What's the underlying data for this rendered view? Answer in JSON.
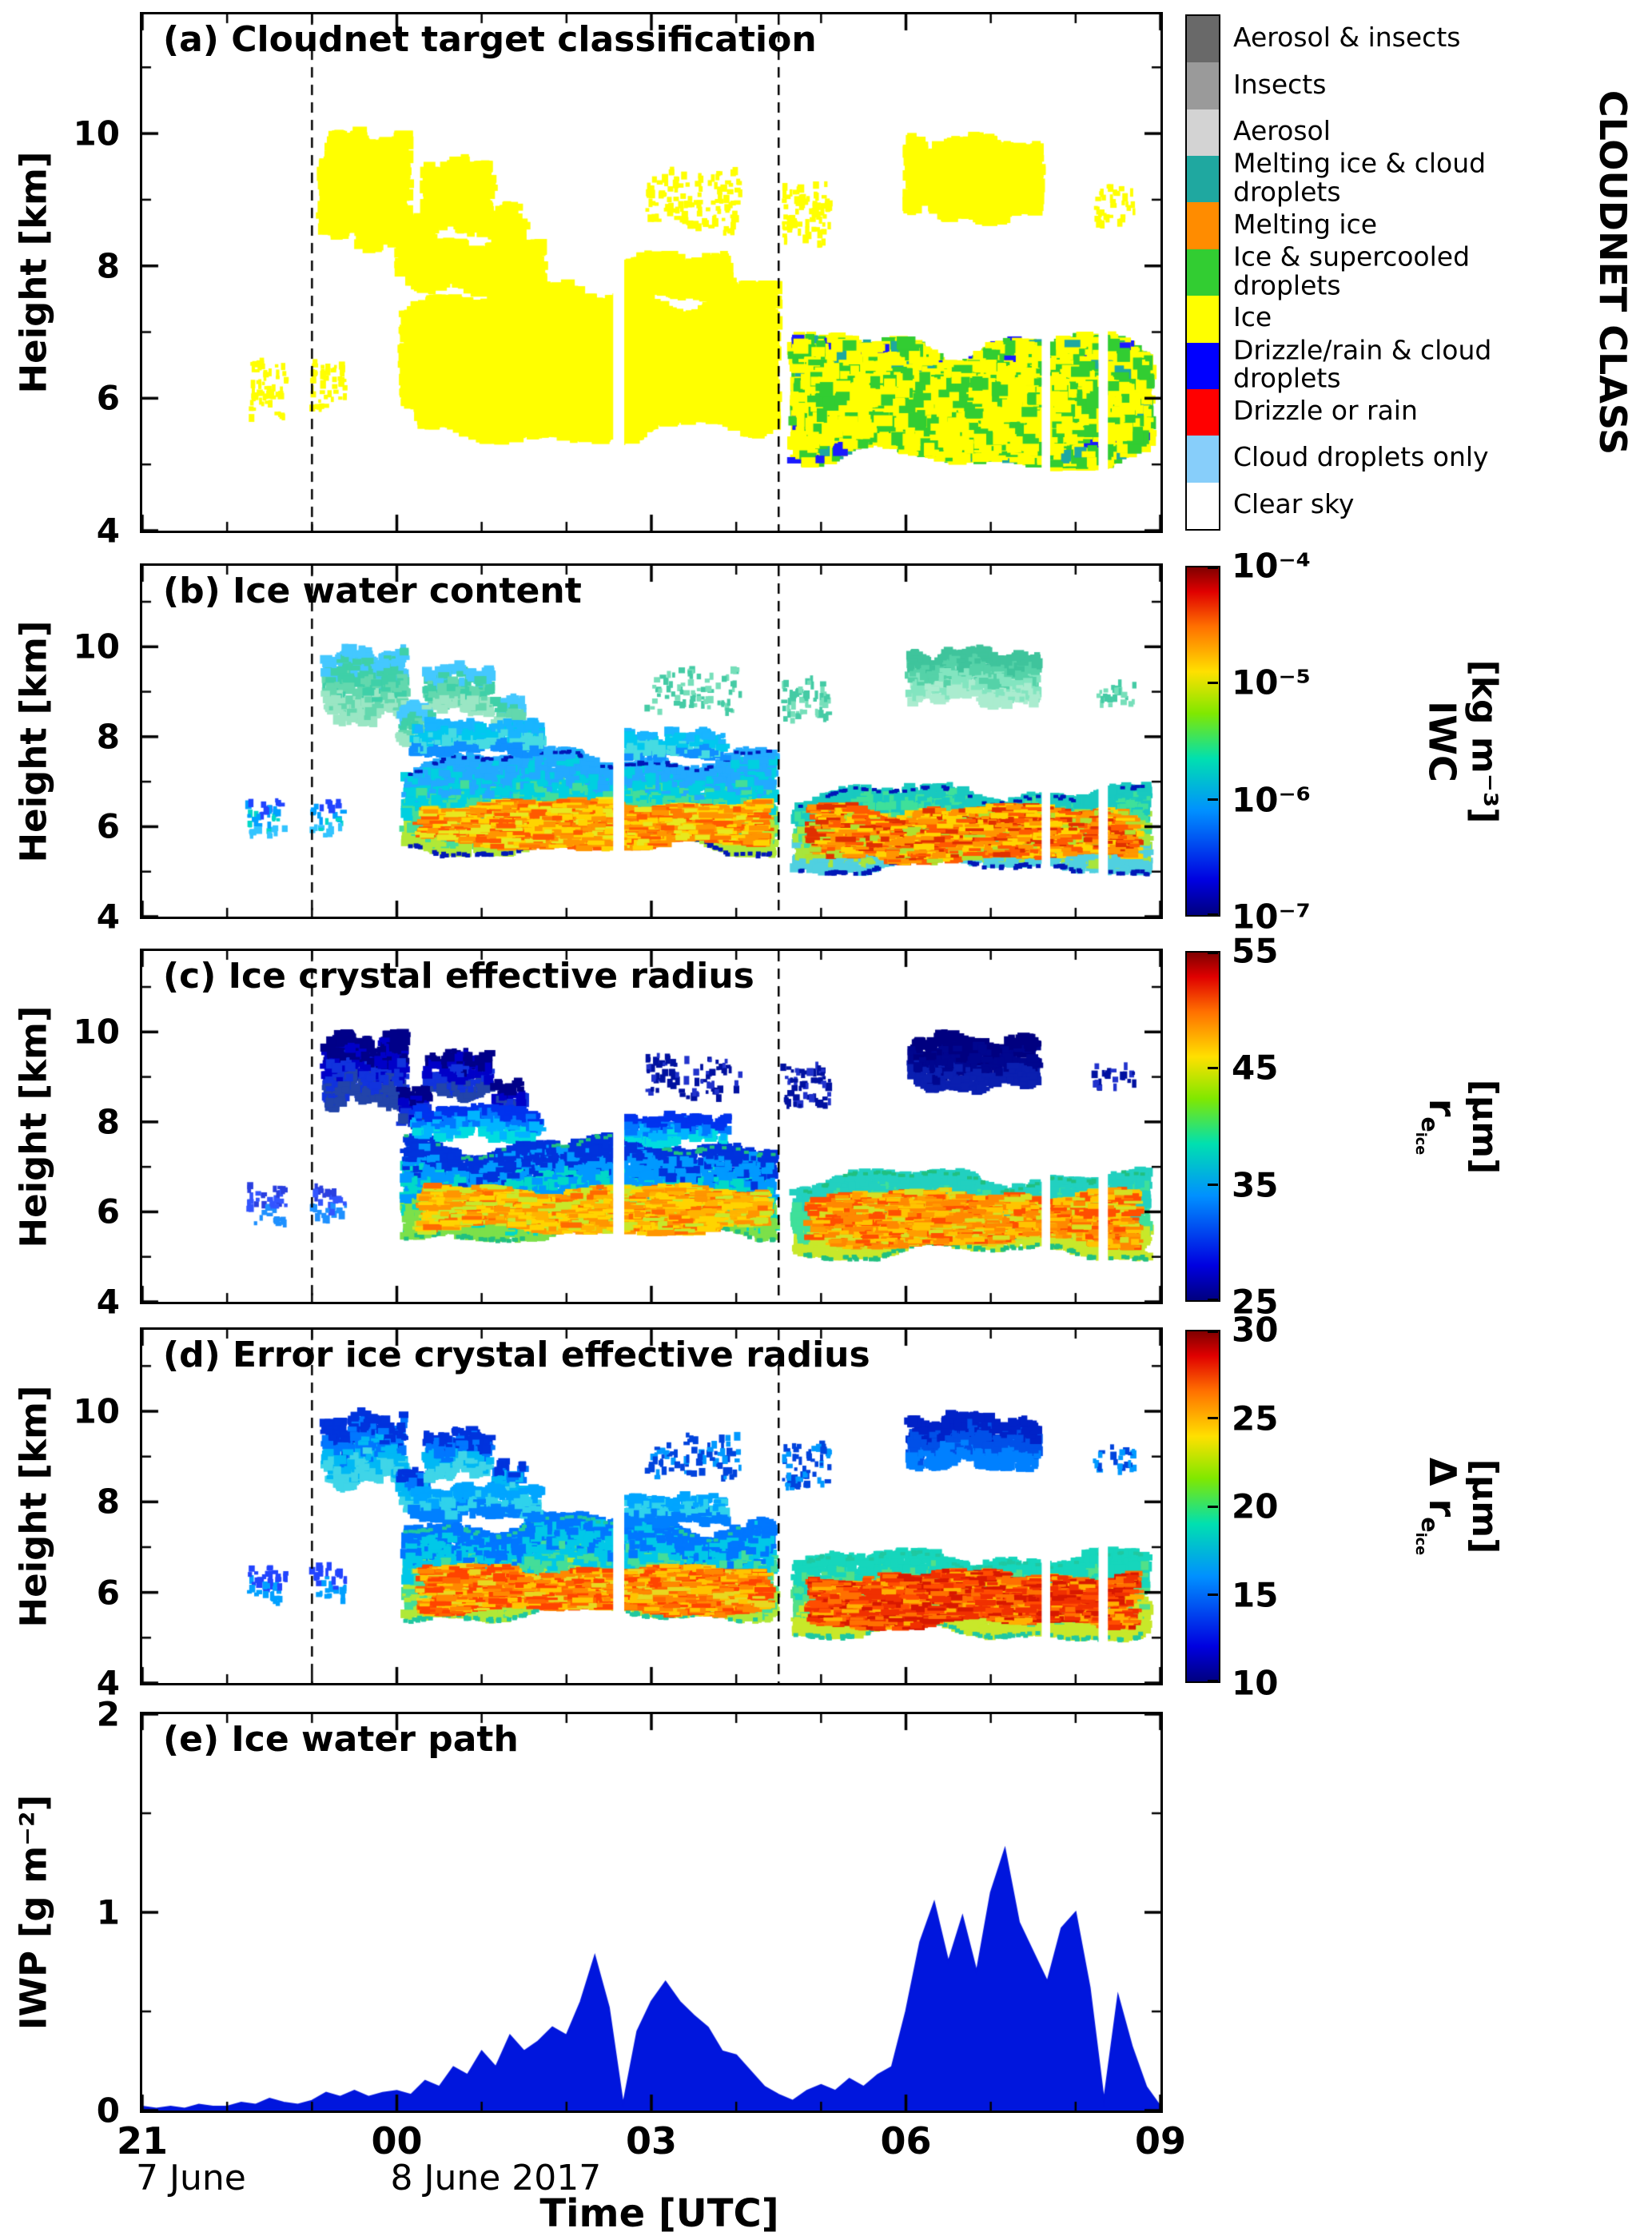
{
  "layout_text": {
    "x_axis_label": "Time [UTC]",
    "x_ticks": [
      {
        "t": 0,
        "label": "21"
      },
      {
        "t": 3,
        "label": "00"
      },
      {
        "t": 6,
        "label": "03"
      },
      {
        "t": 9,
        "label": "06"
      },
      {
        "t": 12,
        "label": "09"
      }
    ],
    "x_minor_step_hours": 1,
    "date_labels": [
      {
        "t": 0,
        "label": "7 June"
      },
      {
        "t": 3,
        "label": "8 June 2017"
      }
    ]
  },
  "annotations": {
    "dashed_vertical_lines_hours": [
      2.0,
      7.5
    ]
  },
  "gaps": [
    {
      "t": [
        5.55,
        5.68
      ],
      "h": [
        4.05,
        8.45
      ]
    },
    {
      "t": [
        10.6,
        10.7
      ],
      "h": [
        4.05,
        7.05
      ]
    },
    {
      "t": [
        11.27,
        11.38
      ],
      "h": [
        4.05,
        7.05
      ]
    }
  ],
  "cloud_patches": [
    {
      "id": "left-specks-1",
      "t": [
        1.25,
        1.7
      ],
      "h": [
        5.7,
        6.6
      ],
      "zone": "thin",
      "density": 0.5
    },
    {
      "id": "left-specks-2",
      "t": [
        2.0,
        2.4
      ],
      "h": [
        5.8,
        6.6
      ],
      "zone": "thin",
      "density": 0.55
    },
    {
      "id": "cirrus-2330",
      "t": [
        2.15,
        3.1
      ],
      "h": [
        8.3,
        10.0
      ],
      "zone": "upper",
      "density": 0.9
    },
    {
      "id": "cirrus-0005",
      "t": [
        3.05,
        3.4
      ],
      "h": [
        7.8,
        8.75
      ],
      "zone": "upper",
      "density": 0.85
    },
    {
      "id": "cirrus-0030",
      "t": [
        3.35,
        4.1
      ],
      "h": [
        8.5,
        9.6
      ],
      "zone": "upper",
      "density": 0.8
    },
    {
      "id": "cirrus-0110",
      "t": [
        4.15,
        4.5
      ],
      "h": [
        8.1,
        8.9
      ],
      "zone": "upper",
      "density": 0.55
    },
    {
      "id": "main-deck",
      "t": [
        3.1,
        7.45
      ],
      "h": [
        5.4,
        7.7
      ],
      "zone": "deck",
      "density": 1.0
    },
    {
      "id": "main-deck-top-1",
      "t": [
        3.2,
        4.7
      ],
      "h": [
        7.6,
        8.35
      ],
      "zone": "band",
      "density": 0.85
    },
    {
      "id": "main-deck-top-2",
      "t": [
        5.7,
        6.9
      ],
      "h": [
        7.5,
        8.15
      ],
      "zone": "band",
      "density": 0.75
    },
    {
      "id": "main-core",
      "t": [
        3.3,
        7.35
      ],
      "h": [
        5.5,
        6.6
      ],
      "zone": "core",
      "density": 0.95
    },
    {
      "id": "mid-specks-1",
      "t": [
        5.95,
        7.05
      ],
      "h": [
        8.5,
        9.5
      ],
      "zone": "upperthin",
      "density": 0.35
    },
    {
      "id": "mid-specks-2",
      "t": [
        7.55,
        8.1
      ],
      "h": [
        8.3,
        9.3
      ],
      "zone": "upperthin",
      "density": 0.5
    },
    {
      "id": "second-deck",
      "t": [
        7.7,
        11.85
      ],
      "h": [
        5.0,
        6.9
      ],
      "zone": "deck2",
      "density": 1.0
    },
    {
      "id": "second-core",
      "t": [
        7.9,
        11.7
      ],
      "h": [
        5.2,
        6.5
      ],
      "zone": "core2",
      "density": 0.95
    },
    {
      "id": "cirrus-0630",
      "t": [
        9.05,
        10.55
      ],
      "h": [
        8.7,
        9.95
      ],
      "zone": "upper3",
      "density": 0.9
    },
    {
      "id": "right-specks",
      "t": [
        11.2,
        11.7
      ],
      "h": [
        8.6,
        9.25
      ],
      "zone": "upperthin",
      "density": 0.35
    }
  ],
  "chart_data": [
    {
      "type": "heatmap",
      "label": "a",
      "title": "(a) Cloudnet target classification",
      "ylabel": "Height [km]",
      "ylim": [
        4,
        11.8
      ],
      "yticks": [
        4,
        6,
        8,
        10
      ],
      "yticks_minor": [
        5,
        7,
        9,
        11
      ],
      "x_range_hours": [
        0,
        12
      ],
      "colorbar": {
        "kind": "categorical",
        "title": "CLOUDNET CLASS",
        "classes": [
          {
            "label": "Aerosol & insects",
            "color": "#696969"
          },
          {
            "label": "Insects",
            "color": "#9a9a9a"
          },
          {
            "label": "Aerosol",
            "color": "#d3d3d3"
          },
          {
            "label": "Melting ice & cloud droplets",
            "color": "#1fa8a0"
          },
          {
            "label": "Melting ice",
            "color": "#ff8c00"
          },
          {
            "label": "Ice & supercooled droplets",
            "color": "#32cd32"
          },
          {
            "label": "Ice",
            "color": "#ffff00"
          },
          {
            "label": "Drizzle/rain & cloud droplets",
            "color": "#0000ff"
          },
          {
            "label": "Drizzle or rain",
            "color": "#ff0000"
          },
          {
            "label": "Cloud droplets only",
            "color": "#87cefa"
          },
          {
            "label": "Clear sky",
            "color": "#ffffff"
          }
        ]
      },
      "zones": {
        "default": {
          "mode": "mix",
          "colors": [
            [
              "#ffff00",
              1.0
            ]
          ]
        },
        "deck2": {
          "mode": "mix",
          "colors": [
            [
              "#ffff00",
              0.58
            ],
            [
              "#32cd32",
              0.32
            ],
            [
              "#1fa8a0",
              0.06
            ],
            [
              "#1a1aff",
              0.04
            ]
          ]
        },
        "core2": {
          "mode": "mix",
          "colors": [
            [
              "#ffff00",
              0.72
            ],
            [
              "#32cd32",
              0.28
            ]
          ]
        }
      }
    },
    {
      "type": "heatmap",
      "label": "b",
      "title": "(b) Ice water content",
      "ylabel": "Height [km]",
      "ylim": [
        4,
        11.8
      ],
      "yticks": [
        4,
        6,
        8,
        10
      ],
      "yticks_minor": [
        5,
        7,
        9,
        11
      ],
      "x_range_hours": [
        0,
        12
      ],
      "colorbar": {
        "kind": "continuous",
        "scale": "log",
        "range": [
          1e-07,
          0.0001
        ],
        "ticks": [
          "10⁻⁴",
          "10⁻⁵",
          "10⁻⁶",
          "10⁻⁷"
        ],
        "label": {
          "prefix": "",
          "sym": "IWC",
          "sub": "",
          "subsub": "",
          "unit": "[kg m⁻³]"
        }
      },
      "zones": {
        "default": {
          "mode": "mix",
          "colors": [
            [
              "#00c0f0",
              1.0
            ]
          ]
        },
        "thin": {
          "mode": "band",
          "colors": [
            "#2244ff",
            "#00a0ff",
            "#00d8c8",
            "#33c4ff"
          ]
        },
        "upper": {
          "mode": "band",
          "colors": [
            "#44c8ff",
            "#3fd0a8",
            "#63d8ae",
            "#9ae6c4"
          ]
        },
        "upperthin": {
          "mode": "mix",
          "colors": [
            [
              "#45cba5",
              0.6
            ],
            [
              "#77dfba",
              0.4
            ]
          ]
        },
        "upper3": {
          "mode": "band",
          "colors": [
            "#3fc49c",
            "#55d2a8",
            "#83e5c0",
            "#aaeccf"
          ]
        },
        "band": {
          "mode": "band",
          "colors": [
            "#19b5ff",
            "#00c9ef",
            "#46dbe2",
            "#1090ff"
          ]
        },
        "deck": {
          "mode": "band",
          "colors": [
            "#22aaff",
            "#00d0e0",
            "#44dd99",
            "#b0e838"
          ],
          "edge": "#0018b8"
        },
        "core": {
          "mode": "mix",
          "streak": true,
          "colors": [
            [
              "#ffd400",
              0.25
            ],
            [
              "#ff9500",
              0.3
            ],
            [
              "#ff5a00",
              0.2
            ],
            [
              "#e8e81e",
              0.15
            ],
            [
              "#ff7b00",
              0.1
            ]
          ]
        },
        "deck2": {
          "mode": "band",
          "colors": [
            "#19c9c0",
            "#3fe09a",
            "#a8e53c",
            "#50d0e0"
          ],
          "edge": "#0018b8"
        },
        "core2": {
          "mode": "mix",
          "streak": true,
          "colors": [
            [
              "#ff9500",
              0.3
            ],
            [
              "#ff5a00",
              0.25
            ],
            [
              "#ffd400",
              0.2
            ],
            [
              "#e03000",
              0.15
            ],
            [
              "#b0e030",
              0.1
            ]
          ]
        }
      }
    },
    {
      "type": "heatmap",
      "label": "c",
      "title": "(c) Ice crystal effective radius",
      "ylabel": "Height [km]",
      "ylim": [
        4,
        11.8
      ],
      "yticks": [
        4,
        6,
        8,
        10
      ],
      "yticks_minor": [
        5,
        7,
        9,
        11
      ],
      "x_range_hours": [
        0,
        12
      ],
      "colorbar": {
        "kind": "continuous",
        "scale": "linear",
        "range": [
          25,
          55
        ],
        "ticks": [
          "55",
          "45",
          "35",
          "25"
        ],
        "label": {
          "prefix": "",
          "sym": "r",
          "sub": "e",
          "subsub": "ice",
          "unit": "[μm]"
        }
      },
      "zones": {
        "default": {
          "mode": "mix",
          "colors": [
            [
              "#0077ff",
              1.0
            ]
          ]
        },
        "thin": {
          "mode": "band",
          "colors": [
            "#2a3fe0",
            "#3355ff",
            "#1e90ff"
          ]
        },
        "upper": {
          "mode": "band",
          "colors": [
            "#000089",
            "#0000c8",
            "#1133dd",
            "#2244aa"
          ]
        },
        "upperthin": {
          "mode": "mix",
          "colors": [
            [
              "#0011a0",
              0.6
            ],
            [
              "#2233cc",
              0.4
            ]
          ]
        },
        "upper3": {
          "mode": "band",
          "colors": [
            "#000080",
            "#00068f",
            "#0a1fb0"
          ]
        },
        "band": {
          "mode": "band",
          "colors": [
            "#0033ee",
            "#0077ff",
            "#00b4ff",
            "#00dce0"
          ]
        },
        "deck": {
          "mode": "band",
          "colors": [
            "#0033dd",
            "#0099ff",
            "#00d8c8",
            "#7ce04a"
          ],
          "edge": "#20c080"
        },
        "core": {
          "mode": "mix",
          "streak": true,
          "colors": [
            [
              "#ffd400",
              0.3
            ],
            [
              "#ff9500",
              0.25
            ],
            [
              "#c8e82a",
              0.2
            ],
            [
              "#ffb300",
              0.15
            ],
            [
              "#ff6a00",
              0.1
            ]
          ]
        },
        "deck2": {
          "mode": "band",
          "colors": [
            "#22d0c0",
            "#3fe09a",
            "#c8e82a"
          ],
          "edge": "#20c080"
        },
        "core2": {
          "mode": "mix",
          "streak": true,
          "colors": [
            [
              "#ff8800",
              0.3
            ],
            [
              "#ffc400",
              0.25
            ],
            [
              "#ff4f00",
              0.2
            ],
            [
              "#d5e023",
              0.15
            ],
            [
              "#ff9d00",
              0.1
            ]
          ]
        }
      }
    },
    {
      "type": "heatmap",
      "label": "d",
      "title": "(d) Error ice crystal effective radius",
      "ylabel": "Height [km]",
      "ylim": [
        4,
        11.8
      ],
      "yticks": [
        4,
        6,
        8,
        10
      ],
      "yticks_minor": [
        5,
        7,
        9,
        11
      ],
      "x_range_hours": [
        0,
        12
      ],
      "colorbar": {
        "kind": "continuous",
        "scale": "linear",
        "range": [
          10,
          30
        ],
        "ticks": [
          "30",
          "25",
          "20",
          "15",
          "10"
        ],
        "label": {
          "prefix": "Δ ",
          "sym": "r",
          "sub": "e",
          "subsub": "ice",
          "unit": "[μm]"
        }
      },
      "zones": {
        "default": {
          "mode": "mix",
          "colors": [
            [
              "#0080ff",
              1.0
            ]
          ]
        },
        "thin": {
          "mode": "band",
          "colors": [
            "#2244ff",
            "#00a0ff"
          ]
        },
        "upper": {
          "mode": "band",
          "colors": [
            "#0033dd",
            "#0077ff",
            "#00b8f5",
            "#3fd5e8"
          ]
        },
        "upperthin": {
          "mode": "mix",
          "colors": [
            [
              "#0044dd",
              0.6
            ],
            [
              "#0099ff",
              0.4
            ]
          ]
        },
        "upper3": {
          "mode": "band",
          "colors": [
            "#0022c8",
            "#0050e8",
            "#0080ff"
          ]
        },
        "band": {
          "mode": "band",
          "colors": [
            "#00a5ff",
            "#2fd2ec",
            "#0080ff"
          ]
        },
        "deck": {
          "mode": "band",
          "colors": [
            "#0077ff",
            "#00c8e8",
            "#44dd99",
            "#b0e838"
          ],
          "edge": "#20c8a0"
        },
        "core": {
          "mode": "mix",
          "streak": true,
          "colors": [
            [
              "#ff8800",
              0.3
            ],
            [
              "#ff4400",
              0.25
            ],
            [
              "#ffc400",
              0.2
            ],
            [
              "#ff6600",
              0.15
            ],
            [
              "#e8d820",
              0.1
            ]
          ]
        },
        "deck2": {
          "mode": "band",
          "colors": [
            "#16d6bc",
            "#52e088",
            "#c8e82a"
          ],
          "edge": "#20c8a0"
        },
        "core2": {
          "mode": "mix",
          "streak": true,
          "colors": [
            [
              "#f03000",
              0.3
            ],
            [
              "#d81800",
              0.2
            ],
            [
              "#ff7000",
              0.2
            ],
            [
              "#ffb000",
              0.15
            ],
            [
              "#ff4d00",
              0.15
            ]
          ]
        }
      }
    },
    {
      "type": "area",
      "label": "e",
      "title": "(e) Ice water path",
      "ylabel": "IWP [g m⁻²]",
      "ylim": [
        0,
        2
      ],
      "yticks": [
        0,
        1,
        2
      ],
      "yticks_minor": [
        0.5,
        1.5
      ],
      "x_range_hours": [
        0,
        12
      ],
      "series": {
        "name": "IWP",
        "color": "#0016dd",
        "t_start_hours": 0,
        "t_step_hours": 0.1666667,
        "values": [
          0.02,
          0.01,
          0.02,
          0.01,
          0.03,
          0.02,
          0.02,
          0.04,
          0.03,
          0.06,
          0.04,
          0.03,
          0.05,
          0.09,
          0.07,
          0.1,
          0.07,
          0.09,
          0.1,
          0.08,
          0.15,
          0.12,
          0.22,
          0.18,
          0.3,
          0.22,
          0.38,
          0.3,
          0.35,
          0.42,
          0.38,
          0.55,
          0.78,
          0.52,
          0.03,
          0.4,
          0.55,
          0.65,
          0.55,
          0.48,
          0.42,
          0.3,
          0.28,
          0.2,
          0.12,
          0.08,
          0.05,
          0.1,
          0.13,
          0.1,
          0.16,
          0.12,
          0.18,
          0.22,
          0.5,
          0.85,
          1.05,
          0.75,
          0.98,
          0.7,
          1.1,
          1.32,
          0.95,
          0.8,
          0.65,
          0.92,
          1.0,
          0.62,
          0.05,
          0.58,
          0.32,
          0.12,
          0.02
        ]
      }
    }
  ]
}
